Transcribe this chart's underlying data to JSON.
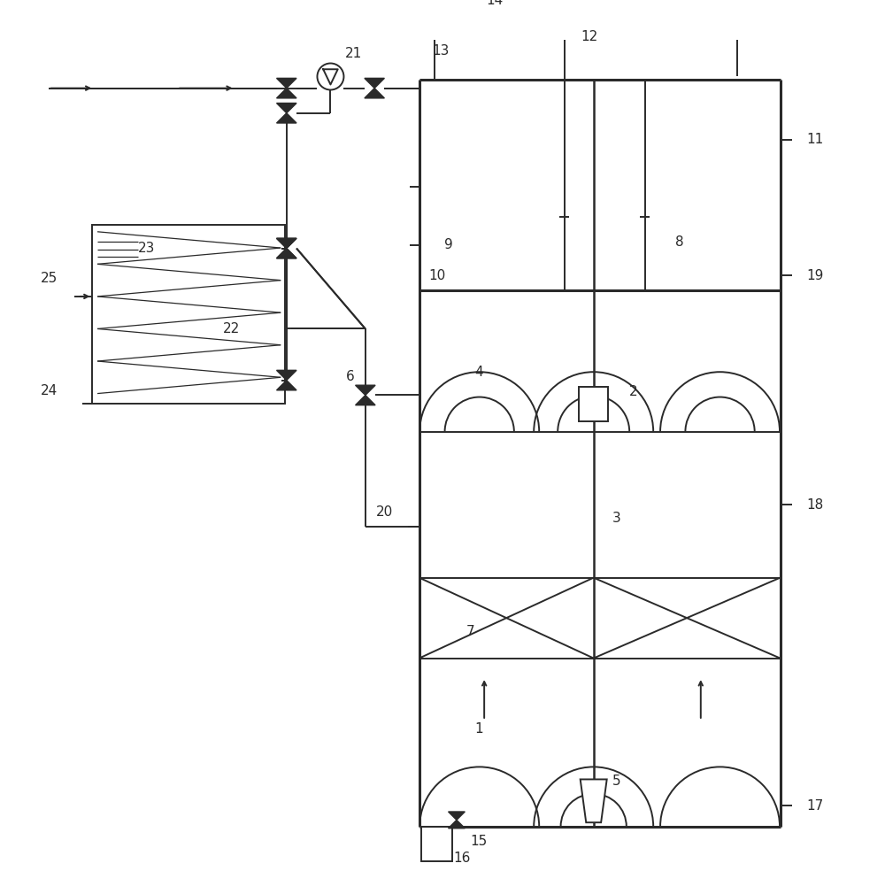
{
  "lc": "#2a2a2a",
  "lw": 1.4,
  "tlw": 2.2,
  "fig_w": 10.0,
  "fig_h": 9.84
}
